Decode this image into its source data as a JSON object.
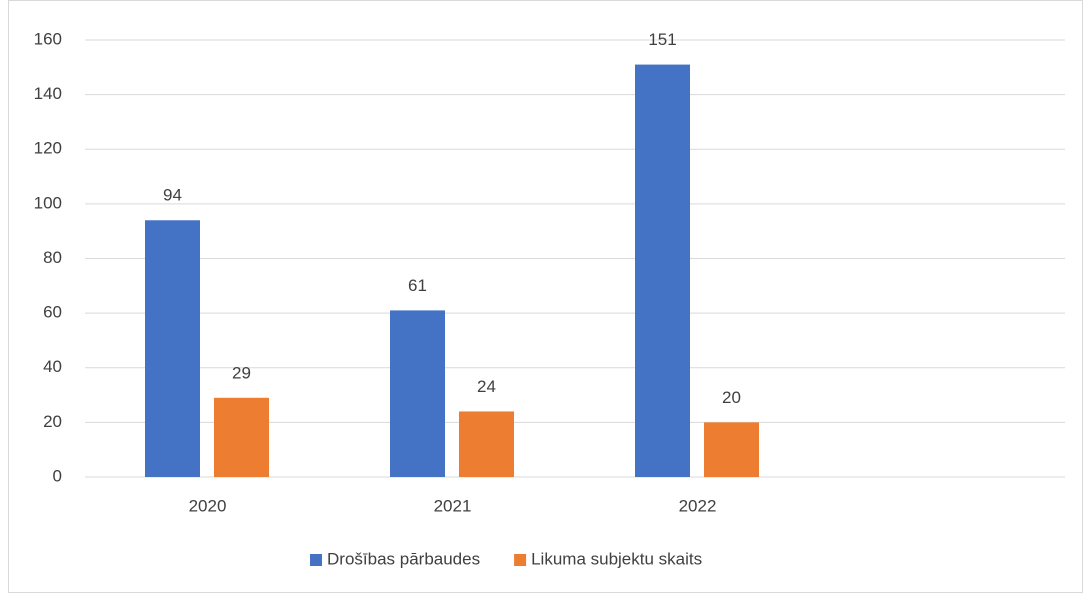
{
  "chart_data": {
    "type": "bar",
    "categories": [
      "2020",
      "2021",
      "2022",
      null
    ],
    "series": [
      {
        "name": "Drošības pārbaudes",
        "color": "#4472c4",
        "values": [
          94,
          61,
          151,
          null
        ]
      },
      {
        "name": "Likuma subjektu skaits",
        "color": "#ed7d31",
        "values": [
          29,
          24,
          20,
          null
        ]
      }
    ],
    "ylim": [
      0,
      160
    ],
    "yticks": [
      0,
      20,
      40,
      60,
      80,
      100,
      120,
      140,
      160
    ],
    "grid": true,
    "legend": "bottom"
  }
}
